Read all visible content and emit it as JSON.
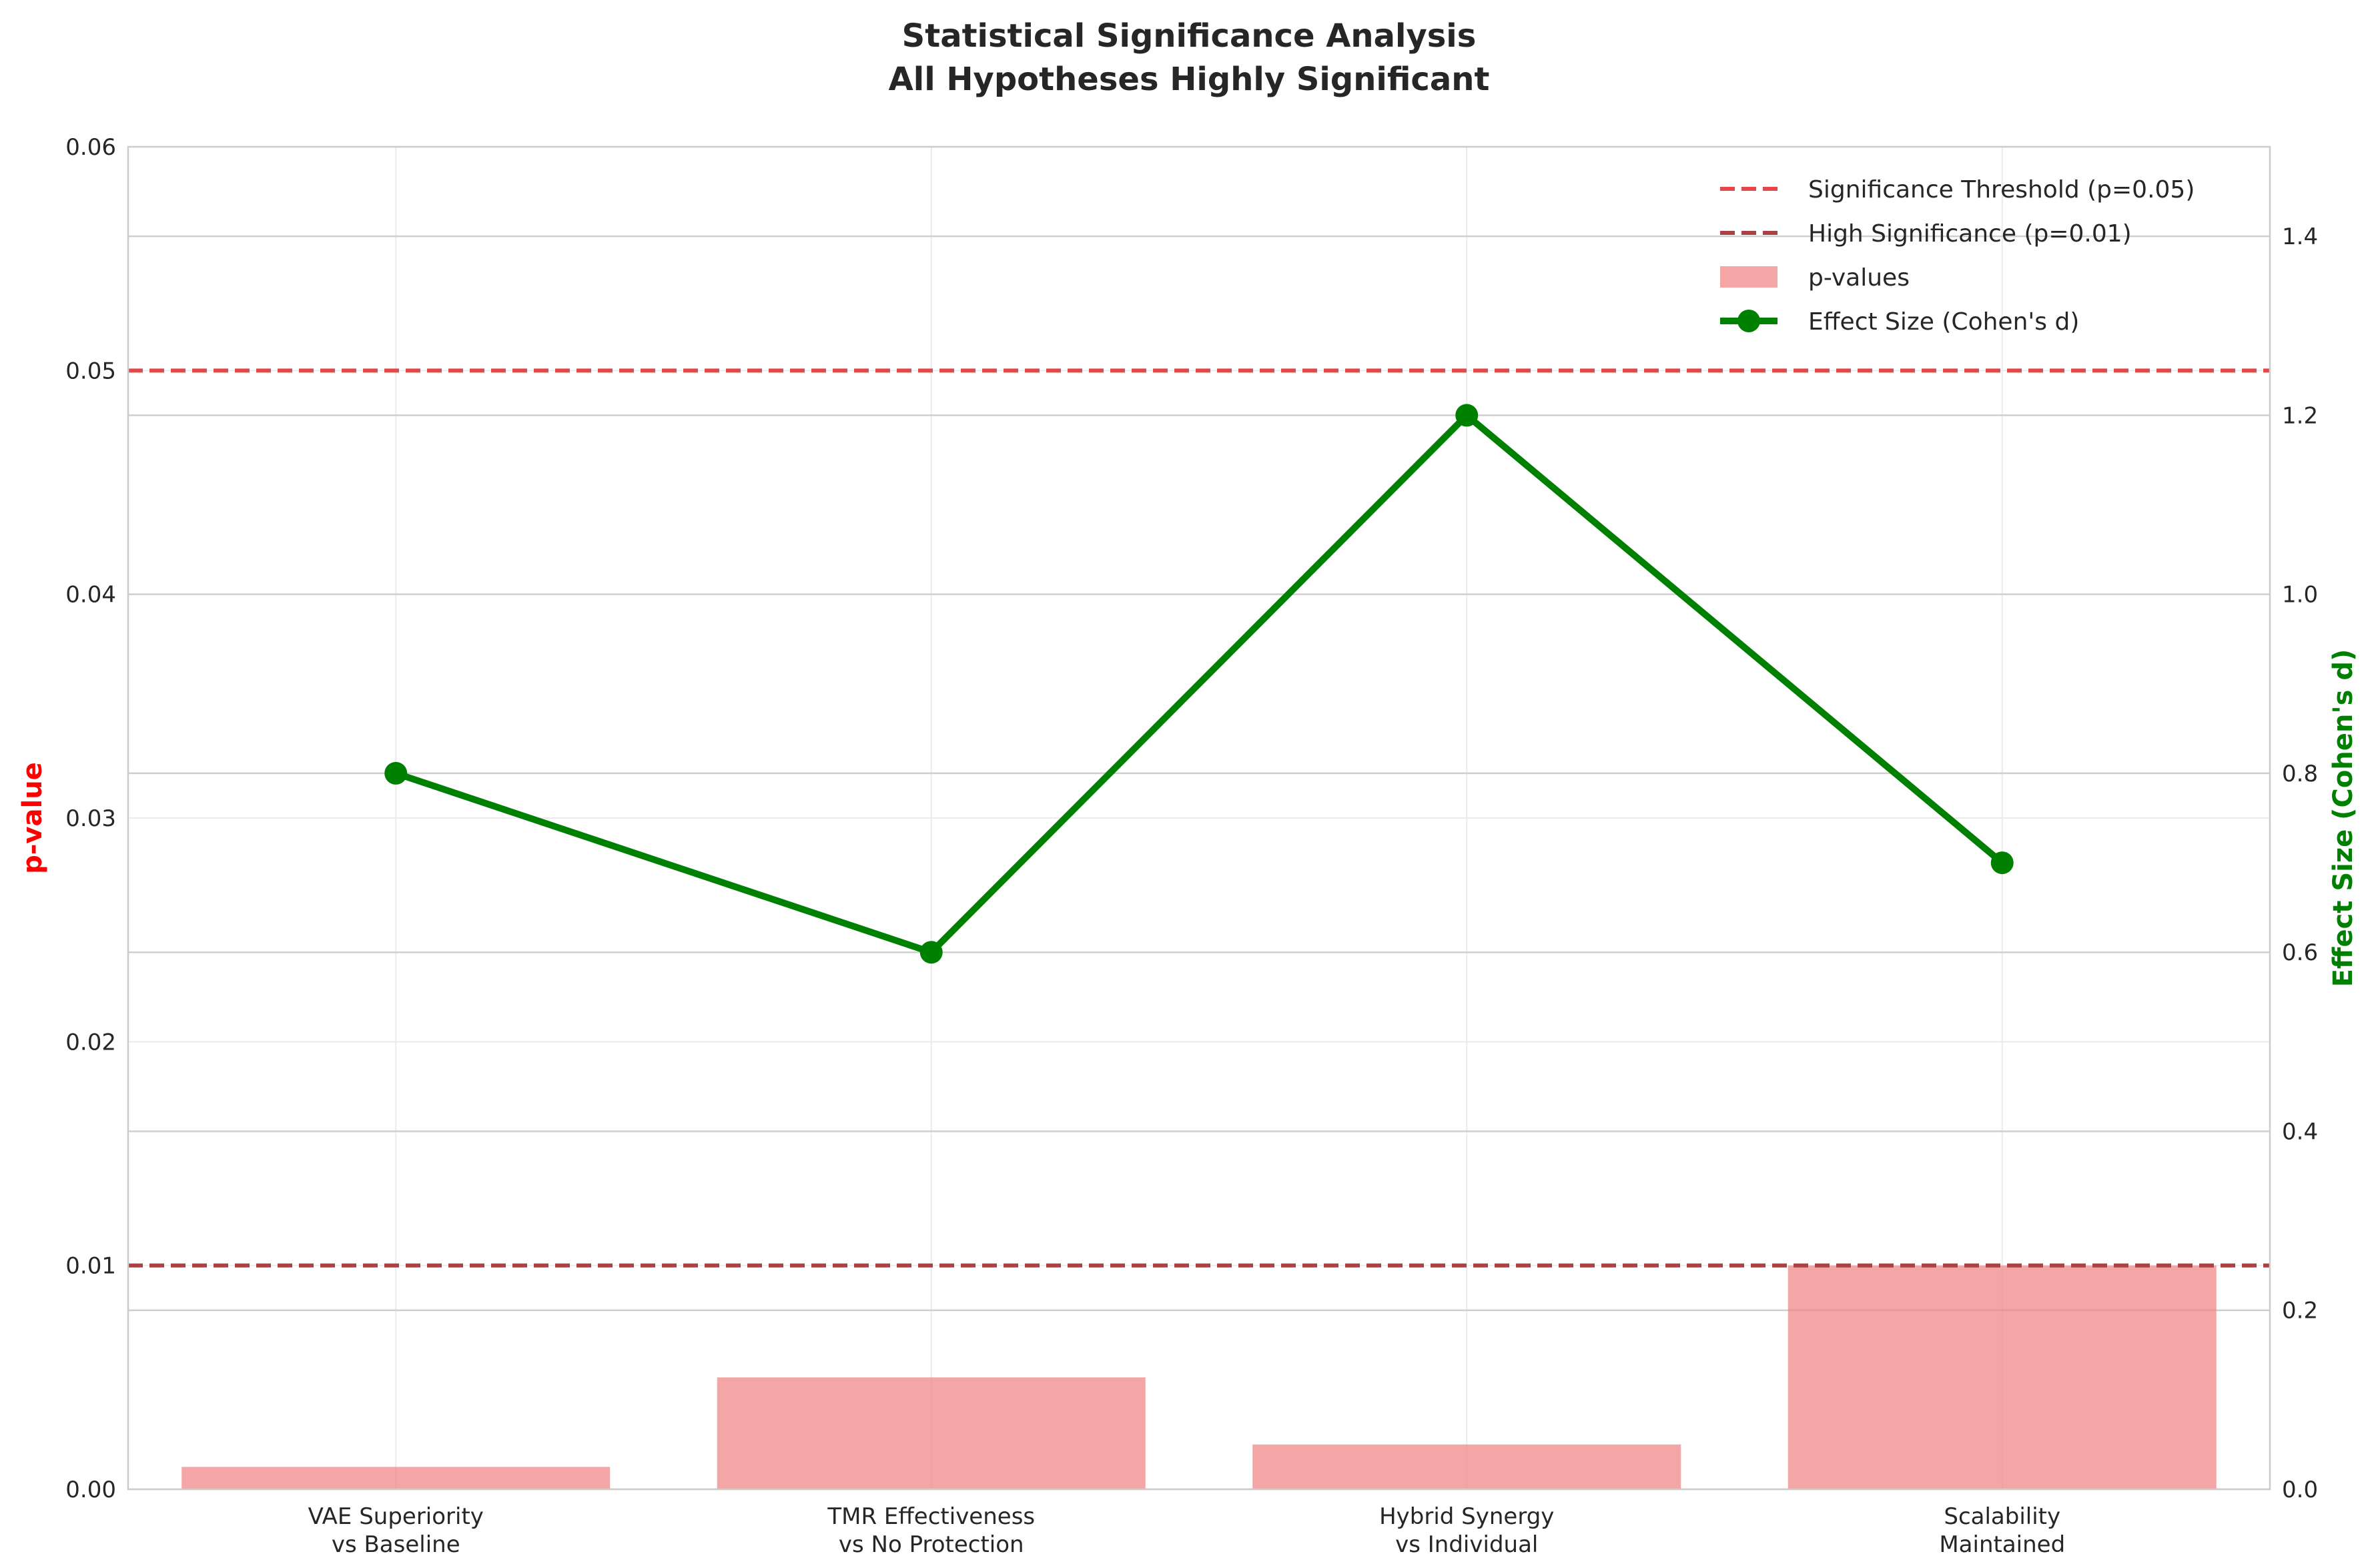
{
  "chart_data": {
    "type": "bar",
    "title": [
      "Statistical Significance Analysis",
      "All Hypotheses Highly Significant"
    ],
    "categories": [
      [
        "VAE Superiority",
        "vs Baseline"
      ],
      [
        "TMR Effectiveness",
        "vs No Protection"
      ],
      [
        "Hybrid Synergy",
        "vs Individual"
      ],
      [
        "Scalability",
        "Maintained"
      ]
    ],
    "left_axis": {
      "label": "p-value",
      "label_color": "#ff0000",
      "ylim": [
        0,
        0.06
      ],
      "ticks": [
        0.0,
        0.01,
        0.02,
        0.03,
        0.04,
        0.05,
        0.06
      ],
      "tick_labels": [
        "0.00",
        "0.01",
        "0.02",
        "0.03",
        "0.04",
        "0.05",
        "0.06"
      ]
    },
    "right_axis": {
      "label": "Effect Size (Cohen's d)",
      "label_color": "#008000",
      "ylim": [
        0,
        1.5
      ],
      "ticks": [
        0.0,
        0.2,
        0.4,
        0.6,
        0.8,
        1.0,
        1.2,
        1.4
      ],
      "tick_labels": [
        "0.0",
        "0.2",
        "0.4",
        "0.6",
        "0.8",
        "1.0",
        "1.2",
        "1.4"
      ]
    },
    "series": [
      {
        "name": "p-values",
        "kind": "bar",
        "axis": "left",
        "color": "#f08080",
        "values": [
          0.001,
          0.005,
          0.002,
          0.01
        ]
      },
      {
        "name": "Effect Size (Cohen's d)",
        "kind": "line",
        "axis": "right",
        "color": "#008000",
        "values": [
          0.8,
          0.6,
          1.2,
          0.7
        ]
      }
    ],
    "reference_lines": [
      {
        "name": "Significance Threshold (p=0.05)",
        "axis": "left",
        "value": 0.05,
        "color": "#e8474a",
        "style": "dashed"
      },
      {
        "name": "High Significance (p=0.01)",
        "axis": "left",
        "value": 0.01,
        "color": "#a94343",
        "style": "dashed"
      }
    ],
    "legend": {
      "placement": "top-right",
      "entries": [
        "Significance Threshold (p=0.05)",
        "High Significance (p=0.01)",
        "p-values",
        "Effect Size (Cohen's d)"
      ]
    },
    "grid": true
  }
}
